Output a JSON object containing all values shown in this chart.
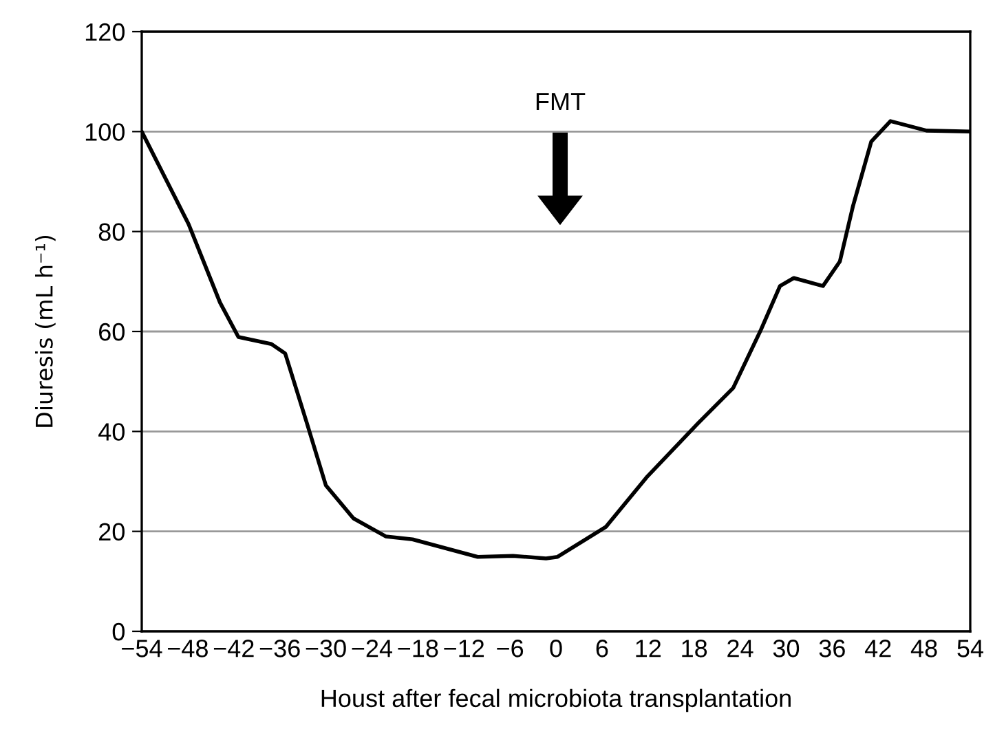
{
  "chart_data": {
    "type": "line",
    "xlabel": "Houst after fecal microbiota transplantation",
    "ylabel": "Diuresis (mL h⁻¹)",
    "xlim": [
      -54,
      54
    ],
    "xticks": [
      -54,
      -48,
      -42,
      -36,
      -30,
      -24,
      -18,
      -12,
      -6,
      0,
      6,
      12,
      18,
      24,
      30,
      36,
      42,
      48,
      54
    ],
    "ylim": [
      0,
      120
    ],
    "yticks": [
      0,
      20,
      40,
      60,
      80,
      100,
      120
    ],
    "grid": "y",
    "marker": "none",
    "line_style": "solid",
    "annotations": [
      "FMT"
    ],
    "series": [
      {
        "color": "#000000",
        "x": [
          -54,
          -47.9,
          -43.8,
          -41.4,
          -37.1,
          -35.3,
          -32.5,
          -30,
          -26.4,
          -22.2,
          -18.7,
          -10.2,
          -5.6,
          -1.3,
          0.2,
          6.5,
          11.8,
          18.5,
          23.1,
          26.7,
          29.2,
          31,
          34.8,
          37,
          38.7,
          41.1,
          43.6,
          48.3,
          54
        ],
        "values": [
          100,
          81.5,
          65.8,
          58.9,
          57.5,
          55.6,
          41.8,
          29.2,
          22.6,
          19,
          18.4,
          14.9,
          15.1,
          14.6,
          14.9,
          20.9,
          30.8,
          41.6,
          48.7,
          60.3,
          69.1,
          70.7,
          69.1,
          74,
          85,
          98,
          102.1,
          100.2,
          100
        ]
      }
    ]
  }
}
